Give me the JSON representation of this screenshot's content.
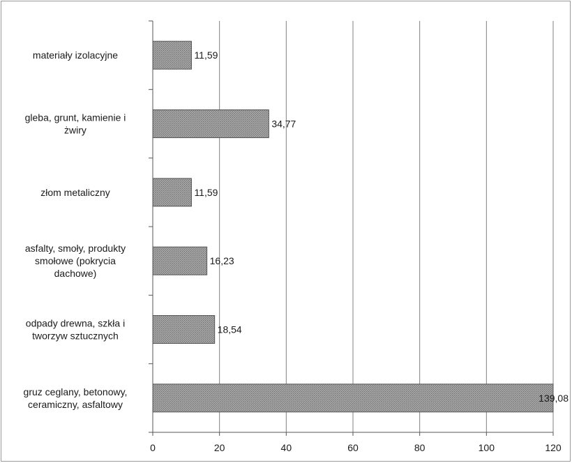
{
  "chart_data": {
    "type": "bar",
    "orientation": "horizontal",
    "categories": [
      "materiały izolacyjne",
      "gleba, grunt, kamienie i żwiry",
      "złom metaliczny",
      "asfalty, smoły, produkty smołowe (pokrycia dachowe)",
      "odpady drewna, szkła i tworzyw sztucznych",
      "gruz ceglany, betonowy, ceramiczny, asfaltowy"
    ],
    "category_lines": [
      [
        "materiały izolacyjne"
      ],
      [
        "gleba, grunt, kamienie i",
        "żwiry"
      ],
      [
        "złom metaliczny"
      ],
      [
        "asfalty, smoły, produkty",
        "smołowe (pokrycia",
        "dachowe)"
      ],
      [
        "odpady drewna, szkła i",
        "tworzyw sztucznych"
      ],
      [
        "gruz ceglany, betonowy,",
        "ceramiczny, asfaltowy"
      ]
    ],
    "values": [
      11.59,
      34.77,
      11.59,
      16.23,
      18.54,
      139.08
    ],
    "value_labels": [
      "11,59",
      "34,77",
      "11,59",
      "16,23",
      "18,54",
      "139,08"
    ],
    "x_ticks": [
      "0",
      "20",
      "40",
      "60",
      "80",
      "100",
      "120"
    ],
    "xlim": [
      0,
      120
    ],
    "grid": true,
    "legend": "none",
    "title": "",
    "xlabel": "",
    "ylabel": "",
    "colors": {
      "bar_fill": "#9c9c9c",
      "bar_stroke": "#555555",
      "grid": "#7f7f7f"
    }
  }
}
